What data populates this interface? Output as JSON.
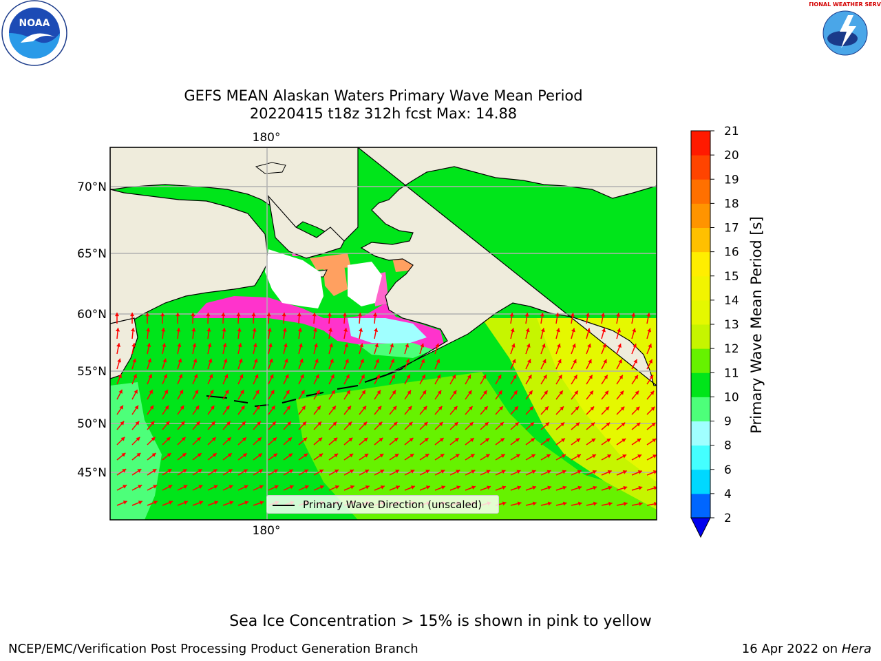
{
  "header": {
    "title_line1": "GEFS MEAN Alaskan Waters Primary Wave Mean Period",
    "title_line2": "20220415 t18z 312h fcst   Max: 14.88",
    "left_logo": "NOAA",
    "right_logo": "NATIONAL WEATHER SERVICE"
  },
  "map": {
    "top_lon_label": "180°",
    "bottom_lon_label": "180°",
    "lat_labels": [
      "70°N",
      "65°N",
      "60°N",
      "55°N",
      "50°N",
      "45°N"
    ],
    "legend_label": "Primary Wave Direction (unscaled)",
    "land_color": "#efecdc",
    "vector_color": "#ff0000"
  },
  "colorbar": {
    "label": "Primary Wave Mean Period [s]",
    "ticks": [
      "2",
      "4",
      "6",
      "8",
      "9",
      "10",
      "11",
      "12",
      "13",
      "14",
      "15",
      "16",
      "17",
      "18",
      "19",
      "20",
      "21"
    ],
    "colors": [
      "#0066ff",
      "#00d8ff",
      "#44ffff",
      "#a0ffff",
      "#4dff7a",
      "#00e51a",
      "#66f200",
      "#c6f500",
      "#e5f800",
      "#f2f400",
      "#ffee00",
      "#ffc000",
      "#ff9400",
      "#ff7000",
      "#ff4400",
      "#ff1a00"
    ],
    "under_color": "#0000ee"
  },
  "footer": {
    "note": "Sea Ice Concentration > 15% is shown in pink to yellow",
    "left": "NCEP/EMC/Verification Post Processing Product Generation Branch",
    "right_date": "16 Apr 2022 on ",
    "right_host": "Hera"
  }
}
